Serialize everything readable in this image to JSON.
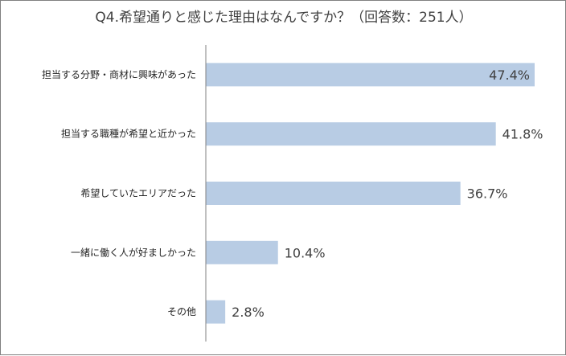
{
  "chart_data": {
    "type": "bar",
    "orientation": "horizontal",
    "title": "Q4.希望通りと感じた理由はなんですか？（回答数：251人）",
    "categories": [
      "担当する分野・商材に興味があった",
      "担当する職種が希望と近かった",
      "希望していたエリアだった",
      "一緒に働く人が好ましかった",
      "その他"
    ],
    "values": [
      47.4,
      41.8,
      36.7,
      10.4,
      2.8
    ],
    "value_labels": [
      "47.4%",
      "41.8%",
      "36.7%",
      "10.4%",
      "2.8%"
    ],
    "xlim": [
      0,
      50
    ],
    "bar_color": "#b8cce4",
    "axis_color": "#808080",
    "grid": false,
    "legend": "none"
  }
}
